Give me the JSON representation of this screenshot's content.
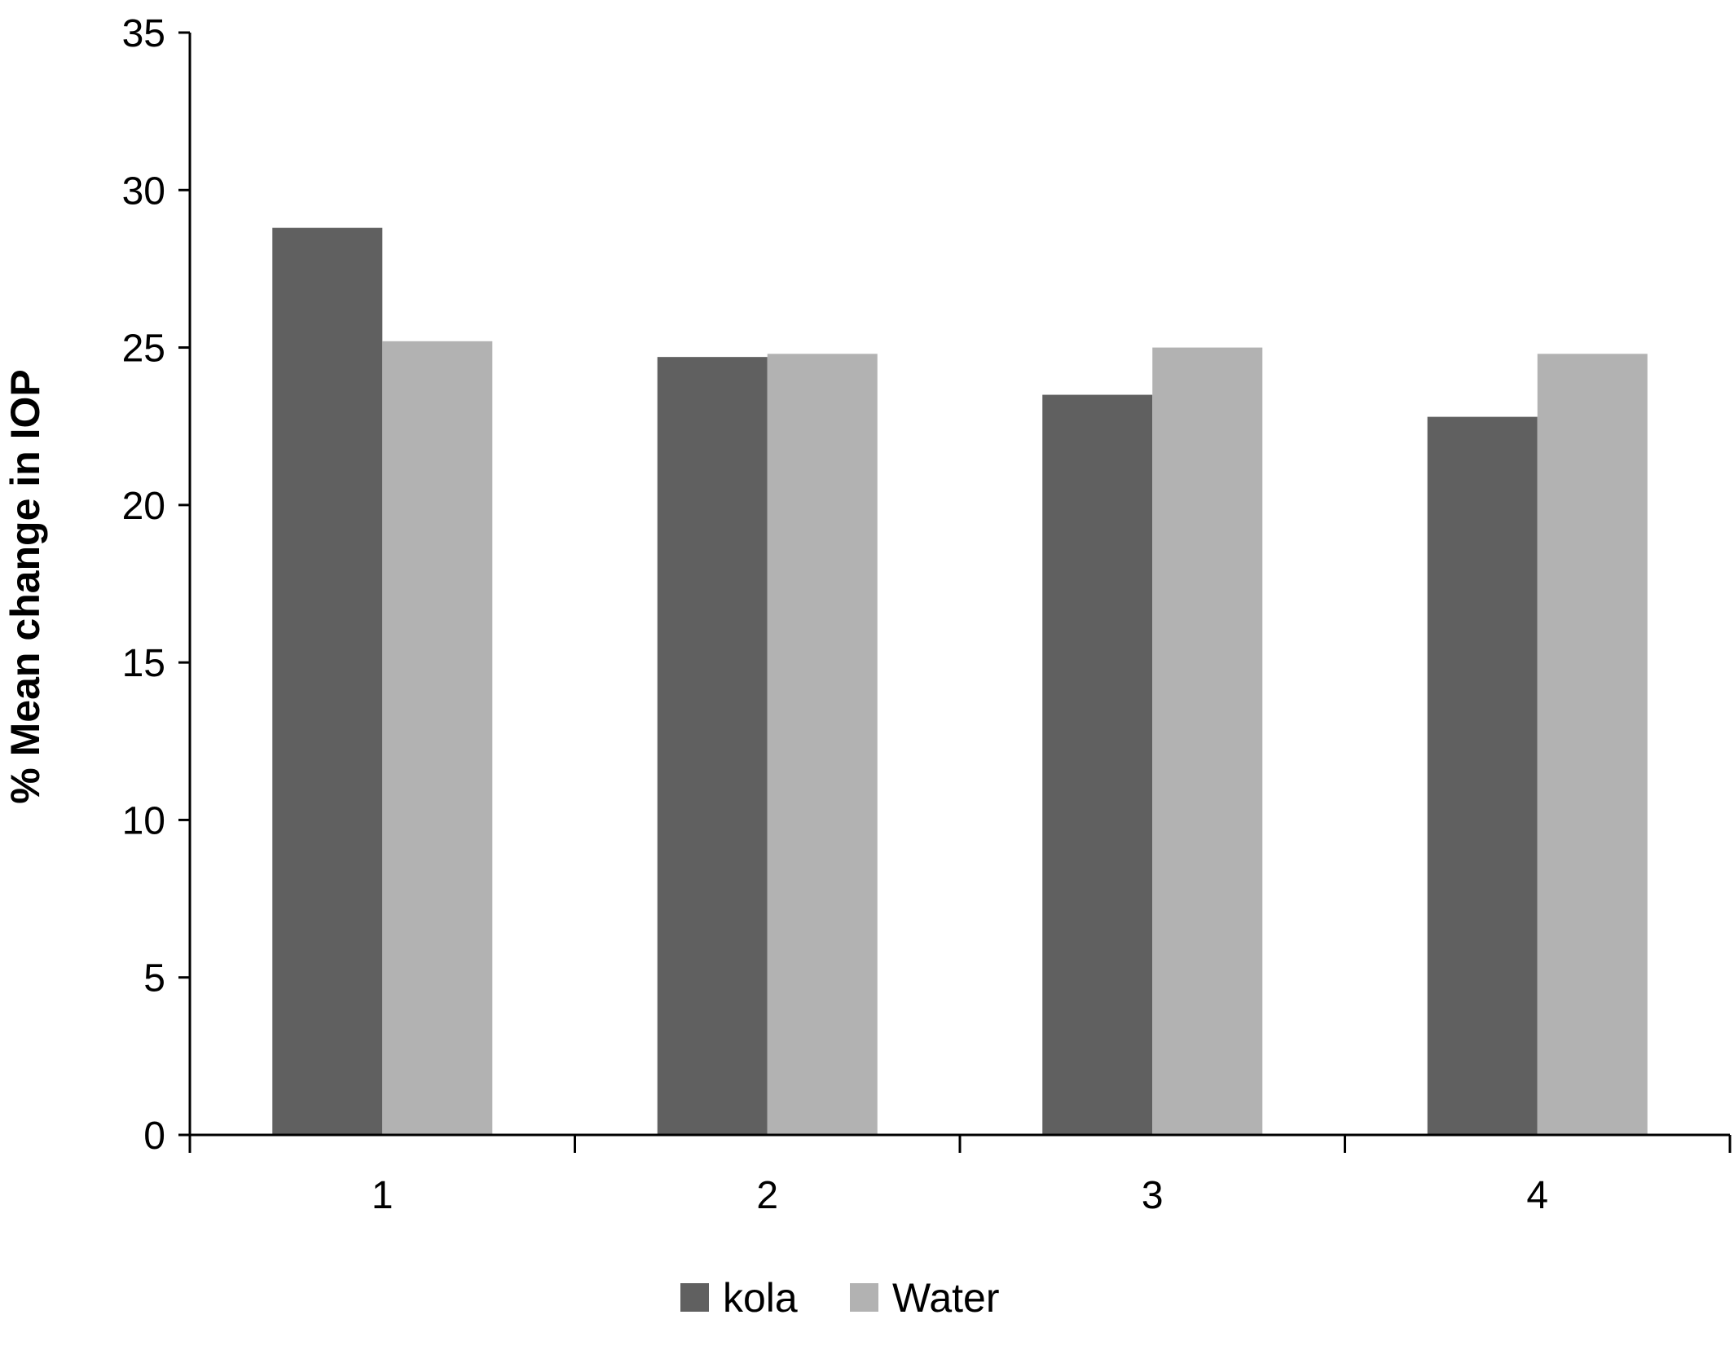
{
  "chart_data": {
    "type": "bar",
    "title": "",
    "xlabel": "",
    "ylabel": "% Mean change in IOP",
    "categories": [
      "1",
      "2",
      "3",
      "4"
    ],
    "ylim": [
      0,
      35
    ],
    "yticks": [
      "0",
      "5",
      "10",
      "15",
      "20",
      "25",
      "30",
      "35"
    ],
    "grid": false,
    "legend_position": "bottom",
    "series": [
      {
        "name": "kola",
        "color": "#606060",
        "values": [
          28.8,
          24.7,
          23.5,
          22.8
        ]
      },
      {
        "name": "Water",
        "color": "#b2b2b2",
        "values": [
          25.2,
          24.8,
          25.0,
          24.8
        ]
      }
    ]
  }
}
